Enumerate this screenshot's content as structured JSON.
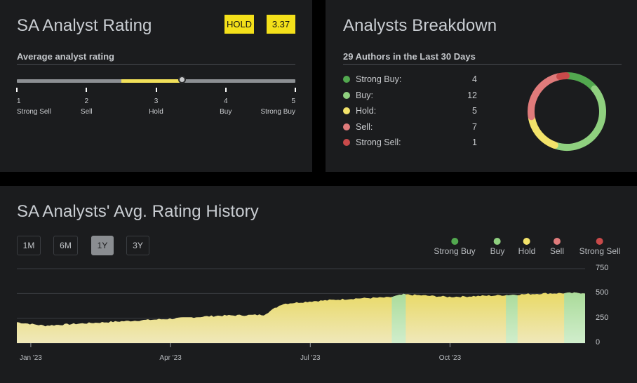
{
  "rating": {
    "title": "SA Analyst Rating",
    "badge_label": "HOLD",
    "badge_score": "3.37",
    "subtitle": "Average analyst rating",
    "score_value": 3.37,
    "scale": [
      {
        "num": "1",
        "label": "Strong Sell"
      },
      {
        "num": "2",
        "label": "Sell"
      },
      {
        "num": "3",
        "label": "Hold"
      },
      {
        "num": "4",
        "label": "Buy"
      },
      {
        "num": "5",
        "label": "Strong Buy"
      }
    ]
  },
  "breakdown": {
    "title": "Analysts Breakdown",
    "subtitle": "29 Authors in the Last 30 Days",
    "rows": [
      {
        "label": "Strong Buy:",
        "count": "4",
        "color": "#52a84f"
      },
      {
        "label": "Buy:",
        "count": "12",
        "color": "#8fd07f"
      },
      {
        "label": "Hold:",
        "count": "5",
        "color": "#f3e36a"
      },
      {
        "label": "Sell:",
        "count": "7",
        "color": "#e07b7b"
      },
      {
        "label": "Strong Sell:",
        "count": "1",
        "color": "#c94a4a"
      }
    ]
  },
  "history": {
    "title": "SA Analysts' Avg. Rating History",
    "ranges": [
      {
        "label": "1M",
        "active": false
      },
      {
        "label": "6M",
        "active": false
      },
      {
        "label": "1Y",
        "active": true
      },
      {
        "label": "3Y",
        "active": false
      }
    ],
    "legend": [
      {
        "label": "Strong Buy",
        "color": "#52a84f"
      },
      {
        "label": "Buy",
        "color": "#8fd07f"
      },
      {
        "label": "Hold",
        "color": "#f3e36a"
      },
      {
        "label": "Sell",
        "color": "#e07b7b"
      },
      {
        "label": "Strong Sell",
        "color": "#c94a4a"
      }
    ]
  },
  "chart_data": {
    "type": "area",
    "title": "SA Analysts' Avg. Rating History",
    "xlabel": "",
    "ylabel": "",
    "ylim": [
      0,
      750
    ],
    "y_ticks": [
      "750",
      "500",
      "250",
      "0"
    ],
    "x_ticks": [
      "Jan '23",
      "Apr '23",
      "Jul '23",
      "Oct '23"
    ],
    "x_range_months": [
      -0.3,
      11.9
    ],
    "x_tick_months": [
      0,
      3,
      6,
      9
    ],
    "series": [
      {
        "name": "Hold",
        "color": "#f3e36a",
        "x_month": [
          -0.3,
          0.3,
          1,
          2,
          3,
          4,
          5,
          5.4,
          6,
          7,
          7.7,
          8,
          9,
          10,
          11,
          11.9
        ],
        "values": [
          210,
          175,
          195,
          220,
          245,
          275,
          285,
          395,
          420,
          450,
          460,
          490,
          465,
          480,
          500,
          505
        ]
      }
    ],
    "buy_bands": [
      {
        "start_month": 7.75,
        "end_month": 8.05
      },
      {
        "start_month": 10.2,
        "end_month": 10.45
      },
      {
        "start_month": 11.45,
        "end_month": 11.95
      }
    ]
  }
}
